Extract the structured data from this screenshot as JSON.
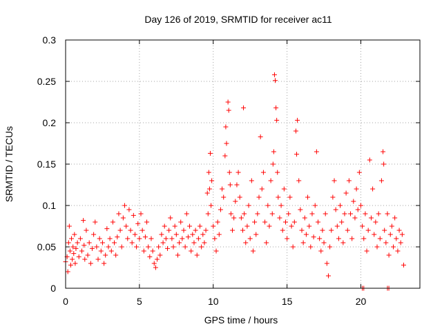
{
  "chart_data": {
    "type": "scatter",
    "title": "Day 126 of 2019, SRMTID for receiver ac11",
    "xlabel": "GPS time / hours",
    "ylabel": "SRMTID / TECUs",
    "xlim": [
      0,
      24
    ],
    "ylim": [
      0,
      0.3
    ],
    "xticks": [
      0,
      5,
      10,
      15,
      20
    ],
    "xtick_labels": [
      "0",
      "5",
      "10",
      "15",
      "20"
    ],
    "yticks": [
      0,
      0.05,
      0.1,
      0.15,
      0.2,
      0.25,
      0.3
    ],
    "ytick_labels": [
      "0",
      "0.05",
      "0.1",
      "0.15",
      "0.2",
      "0.25",
      "0.3"
    ],
    "grid": true,
    "marker": "+",
    "series": [
      {
        "name": "ac11",
        "color": "#ff0000",
        "points": [
          [
            0.0,
            0.032
          ],
          [
            0.1,
            0.038
          ],
          [
            0.15,
            0.02
          ],
          [
            0.2,
            0.055
          ],
          [
            0.25,
            0.075
          ],
          [
            0.3,
            0.045
          ],
          [
            0.35,
            0.028
          ],
          [
            0.4,
            0.06
          ],
          [
            0.45,
            0.035
          ],
          [
            0.5,
            0.05
          ],
          [
            0.55,
            0.042
          ],
          [
            0.6,
            0.065
          ],
          [
            0.65,
            0.03
          ],
          [
            0.7,
            0.048
          ],
          [
            0.8,
            0.055
          ],
          [
            0.9,
            0.038
          ],
          [
            1.0,
            0.06
          ],
          [
            1.1,
            0.045
          ],
          [
            1.2,
            0.082
          ],
          [
            1.25,
            0.052
          ],
          [
            1.3,
            0.035
          ],
          [
            1.4,
            0.07
          ],
          [
            1.5,
            0.04
          ],
          [
            1.6,
            0.055
          ],
          [
            1.7,
            0.03
          ],
          [
            1.8,
            0.048
          ],
          [
            1.9,
            0.065
          ],
          [
            2.0,
            0.08
          ],
          [
            2.1,
            0.05
          ],
          [
            2.2,
            0.035
          ],
          [
            2.3,
            0.06
          ],
          [
            2.4,
            0.045
          ],
          [
            2.5,
            0.055
          ],
          [
            2.6,
            0.03
          ],
          [
            2.7,
            0.04
          ],
          [
            2.8,
            0.072
          ],
          [
            2.9,
            0.05
          ],
          [
            3.0,
            0.06
          ],
          [
            3.1,
            0.045
          ],
          [
            3.2,
            0.08
          ],
          [
            3.3,
            0.055
          ],
          [
            3.4,
            0.04
          ],
          [
            3.5,
            0.062
          ],
          [
            3.6,
            0.09
          ],
          [
            3.7,
            0.07
          ],
          [
            3.8,
            0.05
          ],
          [
            3.9,
            0.085
          ],
          [
            4.0,
            0.1
          ],
          [
            4.1,
            0.075
          ],
          [
            4.2,
            0.06
          ],
          [
            4.3,
            0.095
          ],
          [
            4.4,
            0.07
          ],
          [
            4.5,
            0.055
          ],
          [
            4.6,
            0.088
          ],
          [
            4.7,
            0.065
          ],
          [
            4.8,
            0.05
          ],
          [
            4.9,
            0.078
          ],
          [
            5.0,
            0.06
          ],
          [
            5.1,
            0.09
          ],
          [
            5.2,
            0.07
          ],
          [
            5.3,
            0.045
          ],
          [
            5.4,
            0.062
          ],
          [
            5.5,
            0.08
          ],
          [
            5.6,
            0.05
          ],
          [
            5.7,
            0.038
          ],
          [
            5.8,
            0.06
          ],
          [
            5.9,
            0.045
          ],
          [
            6.0,
            0.03
          ],
          [
            6.1,
            0.025
          ],
          [
            6.2,
            0.035
          ],
          [
            6.3,
            0.05
          ],
          [
            6.4,
            0.04
          ],
          [
            6.5,
            0.065
          ],
          [
            6.6,
            0.055
          ],
          [
            6.7,
            0.075
          ],
          [
            6.8,
            0.06
          ],
          [
            6.9,
            0.048
          ],
          [
            7.0,
            0.07
          ],
          [
            7.1,
            0.085
          ],
          [
            7.2,
            0.06
          ],
          [
            7.3,
            0.05
          ],
          [
            7.4,
            0.075
          ],
          [
            7.5,
            0.065
          ],
          [
            7.6,
            0.04
          ],
          [
            7.7,
            0.055
          ],
          [
            7.8,
            0.08
          ],
          [
            7.9,
            0.06
          ],
          [
            8.0,
            0.07
          ],
          [
            8.1,
            0.05
          ],
          [
            8.2,
            0.09
          ],
          [
            8.3,
            0.062
          ],
          [
            8.4,
            0.075
          ],
          [
            8.5,
            0.045
          ],
          [
            8.6,
            0.065
          ],
          [
            8.7,
            0.055
          ],
          [
            8.8,
            0.07
          ],
          [
            8.9,
            0.04
          ],
          [
            9.0,
            0.06
          ],
          [
            9.1,
            0.075
          ],
          [
            9.2,
            0.05
          ],
          [
            9.3,
            0.065
          ],
          [
            9.4,
            0.055
          ],
          [
            9.5,
            0.07
          ],
          [
            9.6,
            0.115
          ],
          [
            9.65,
            0.09
          ],
          [
            9.7,
            0.14
          ],
          [
            9.75,
            0.12
          ],
          [
            9.8,
            0.163
          ],
          [
            9.85,
            0.1
          ],
          [
            9.9,
            0.13
          ],
          [
            10.0,
            0.075
          ],
          [
            10.1,
            0.06
          ],
          [
            10.2,
            0.045
          ],
          [
            10.3,
            0.08
          ],
          [
            10.4,
            0.065
          ],
          [
            10.5,
            0.095
          ],
          [
            10.6,
            0.12
          ],
          [
            10.7,
            0.11
          ],
          [
            10.8,
            0.16
          ],
          [
            10.85,
            0.195
          ],
          [
            10.9,
            0.175
          ],
          [
            11.0,
            0.225
          ],
          [
            11.05,
            0.215
          ],
          [
            11.1,
            0.14
          ],
          [
            11.15,
            0.125
          ],
          [
            11.2,
            0.09
          ],
          [
            11.3,
            0.07
          ],
          [
            11.4,
            0.085
          ],
          [
            11.5,
            0.105
          ],
          [
            11.6,
            0.125
          ],
          [
            11.7,
            0.14
          ],
          [
            11.8,
            0.11
          ],
          [
            11.9,
            0.085
          ],
          [
            12.0,
            0.07
          ],
          [
            12.05,
            0.218
          ],
          [
            12.1,
            0.09
          ],
          [
            12.2,
            0.055
          ],
          [
            12.3,
            0.075
          ],
          [
            12.4,
            0.1
          ],
          [
            12.5,
            0.06
          ],
          [
            12.6,
            0.13
          ],
          [
            12.7,
            0.045
          ],
          [
            12.8,
            0.08
          ],
          [
            12.9,
            0.065
          ],
          [
            13.0,
            0.09
          ],
          [
            13.1,
            0.11
          ],
          [
            13.2,
            0.183
          ],
          [
            13.3,
            0.12
          ],
          [
            13.4,
            0.14
          ],
          [
            13.5,
            0.08
          ],
          [
            13.6,
            0.055
          ],
          [
            13.7,
            0.1
          ],
          [
            13.8,
            0.075
          ],
          [
            13.9,
            0.13
          ],
          [
            14.0,
            0.09
          ],
          [
            14.05,
            0.15
          ],
          [
            14.1,
            0.165
          ],
          [
            14.15,
            0.258
          ],
          [
            14.2,
            0.251
          ],
          [
            14.25,
            0.218
          ],
          [
            14.3,
            0.203
          ],
          [
            14.35,
            0.14
          ],
          [
            14.4,
            0.11
          ],
          [
            14.5,
            0.085
          ],
          [
            14.6,
            0.1
          ],
          [
            14.7,
            0.07
          ],
          [
            14.8,
            0.12
          ],
          [
            14.9,
            0.08
          ],
          [
            15.0,
            0.06
          ],
          [
            15.1,
            0.09
          ],
          [
            15.2,
            0.11
          ],
          [
            15.3,
            0.075
          ],
          [
            15.4,
            0.05
          ],
          [
            15.5,
            0.08
          ],
          [
            15.6,
            0.19
          ],
          [
            15.65,
            0.162
          ],
          [
            15.7,
            0.203
          ],
          [
            15.8,
            0.13
          ],
          [
            15.9,
            0.095
          ],
          [
            16.0,
            0.07
          ],
          [
            16.1,
            0.055
          ],
          [
            16.2,
            0.085
          ],
          [
            16.3,
            0.065
          ],
          [
            16.4,
            0.11
          ],
          [
            16.5,
            0.075
          ],
          [
            16.6,
            0.05
          ],
          [
            16.7,
            0.09
          ],
          [
            16.8,
            0.062
          ],
          [
            16.9,
            0.1
          ],
          [
            17.0,
            0.165
          ],
          [
            17.1,
            0.08
          ],
          [
            17.2,
            0.06
          ],
          [
            17.3,
            0.045
          ],
          [
            17.4,
            0.07
          ],
          [
            17.5,
            0.055
          ],
          [
            17.6,
            0.09
          ],
          [
            17.7,
            0.03
          ],
          [
            17.8,
            0.015
          ],
          [
            17.9,
            0.05
          ],
          [
            18.0,
            0.07
          ],
          [
            18.1,
            0.11
          ],
          [
            18.2,
            0.13
          ],
          [
            18.3,
            0.095
          ],
          [
            18.4,
            0.075
          ],
          [
            18.5,
            0.06
          ],
          [
            18.6,
            0.1
          ],
          [
            18.7,
            0.08
          ],
          [
            18.8,
            0.055
          ],
          [
            18.9,
            0.09
          ],
          [
            19.0,
            0.115
          ],
          [
            19.1,
            0.07
          ],
          [
            19.2,
            0.13
          ],
          [
            19.3,
            0.09
          ],
          [
            19.4,
            0.06
          ],
          [
            19.5,
            0.105
          ],
          [
            19.6,
            0.085
          ],
          [
            19.7,
            0.12
          ],
          [
            19.8,
            0.095
          ],
          [
            19.9,
            0.14
          ],
          [
            20.0,
            0.1
          ],
          [
            20.1,
            0.075
          ],
          [
            20.2,
            0.06
          ],
          [
            20.3,
            0.09
          ],
          [
            20.4,
            0.045
          ],
          [
            20.5,
            0.07
          ],
          [
            20.6,
            0.155
          ],
          [
            20.7,
            0.085
          ],
          [
            20.8,
            0.12
          ],
          [
            20.9,
            0.065
          ],
          [
            21.0,
            0.08
          ],
          [
            21.1,
            0.05
          ],
          [
            21.2,
            0.09
          ],
          [
            21.3,
            0.06
          ],
          [
            21.4,
            0.13
          ],
          [
            21.5,
            0.165
          ],
          [
            21.55,
            0.15
          ],
          [
            21.6,
            0.07
          ],
          [
            21.7,
            0.055
          ],
          [
            21.8,
            0.09
          ],
          [
            21.9,
            0.04
          ],
          [
            22.0,
            0.065
          ],
          [
            22.1,
            0.075
          ],
          [
            22.2,
            0.05
          ],
          [
            22.3,
            0.085
          ],
          [
            22.4,
            0.06
          ],
          [
            22.5,
            0.045
          ],
          [
            22.6,
            0.07
          ],
          [
            22.7,
            0.055
          ],
          [
            22.8,
            0.065
          ],
          [
            22.9,
            0.028
          ],
          [
            20.1,
            0.0
          ],
          [
            20.2,
            0.0
          ],
          [
            21.8,
            0.0
          ],
          [
            21.9,
            0.0
          ]
        ]
      }
    ]
  }
}
